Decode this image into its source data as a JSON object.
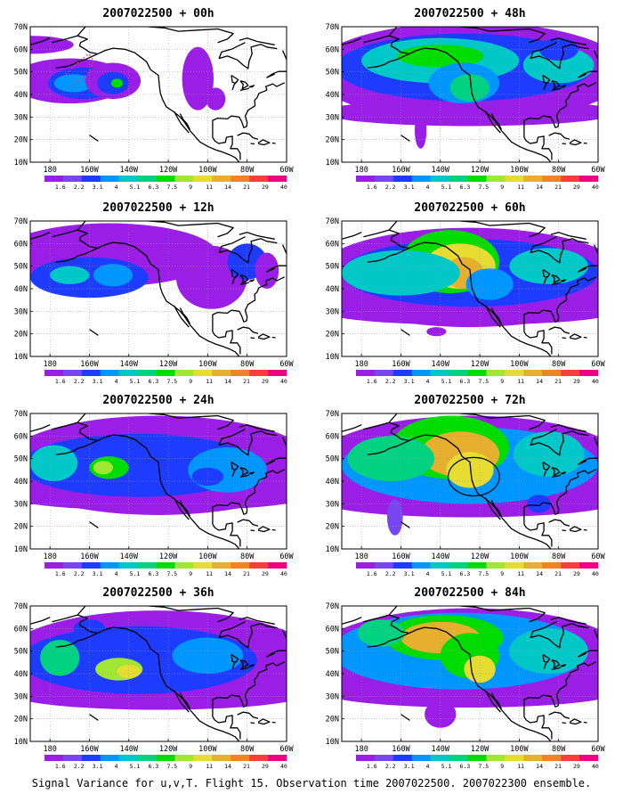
{
  "caption": "Signal Variance for u,v,T. Flight 15. Observation time 2007022500. 2007022300 ensemble.",
  "lon_labels": [
    "180",
    "160W",
    "140W",
    "120W",
    "100W",
    "80W",
    "60W"
  ],
  "lat_labels": [
    "10N",
    "20N",
    "30N",
    "40N",
    "50N",
    "60N",
    "70N"
  ],
  "colorbar": {
    "labels": [
      "1.6",
      "2.2",
      "3.1",
      "4",
      "5.1",
      "6.3",
      "7.5",
      "9",
      "11",
      "14",
      "21",
      "29",
      "40"
    ],
    "colors": [
      "#9a1ee6",
      "#7846f0",
      "#1e3cff",
      "#0096ff",
      "#00c8c8",
      "#00d282",
      "#00dc00",
      "#a0e632",
      "#e6dc32",
      "#e6af2d",
      "#f08228",
      "#fa3c3c",
      "#f00082"
    ]
  },
  "panels": [
    {
      "title": "2007022500 + 00h"
    },
    {
      "title": "2007022500 + 48h"
    },
    {
      "title": "2007022500 + 12h"
    },
    {
      "title": "2007022500 + 60h"
    },
    {
      "title": "2007022500 + 24h"
    },
    {
      "title": "2007022500 + 72h"
    },
    {
      "title": "2007022500 + 36h"
    },
    {
      "title": "2007022500 + 84h"
    }
  ]
}
